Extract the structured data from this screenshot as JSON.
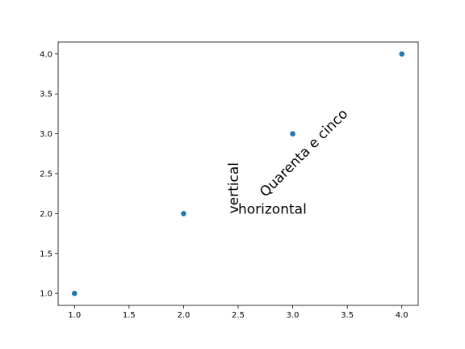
{
  "chart_data": {
    "type": "scatter",
    "title": "",
    "xlabel": "",
    "ylabel": "",
    "x": [
      1.0,
      2.0,
      3.0,
      4.0
    ],
    "y": [
      1.0,
      2.0,
      3.0,
      4.0
    ],
    "xlim": [
      0.85,
      4.15
    ],
    "ylim": [
      0.85,
      4.15
    ],
    "xticks": [
      1.0,
      1.5,
      2.0,
      2.5,
      3.0,
      3.5,
      4.0
    ],
    "yticks": [
      1.0,
      1.5,
      2.0,
      2.5,
      3.0,
      3.5,
      4.0
    ],
    "xtick_labels": [
      "1.0",
      "1.5",
      "2.0",
      "2.5",
      "3.0",
      "3.5",
      "4.0"
    ],
    "ytick_labels": [
      "1.0",
      "1.5",
      "2.0",
      "2.5",
      "3.0",
      "3.5",
      "4.0"
    ],
    "grid": false,
    "point_color": "#1f77b4",
    "annotations": [
      {
        "text": "horizontal",
        "x": 2.5,
        "y": 2.0,
        "rotation": 0
      },
      {
        "text": "vertical",
        "x": 2.5,
        "y": 2.0,
        "rotation": 90
      },
      {
        "text": "Quarenta e cinco",
        "x": 2.75,
        "y": 2.2,
        "rotation": 45
      }
    ]
  }
}
